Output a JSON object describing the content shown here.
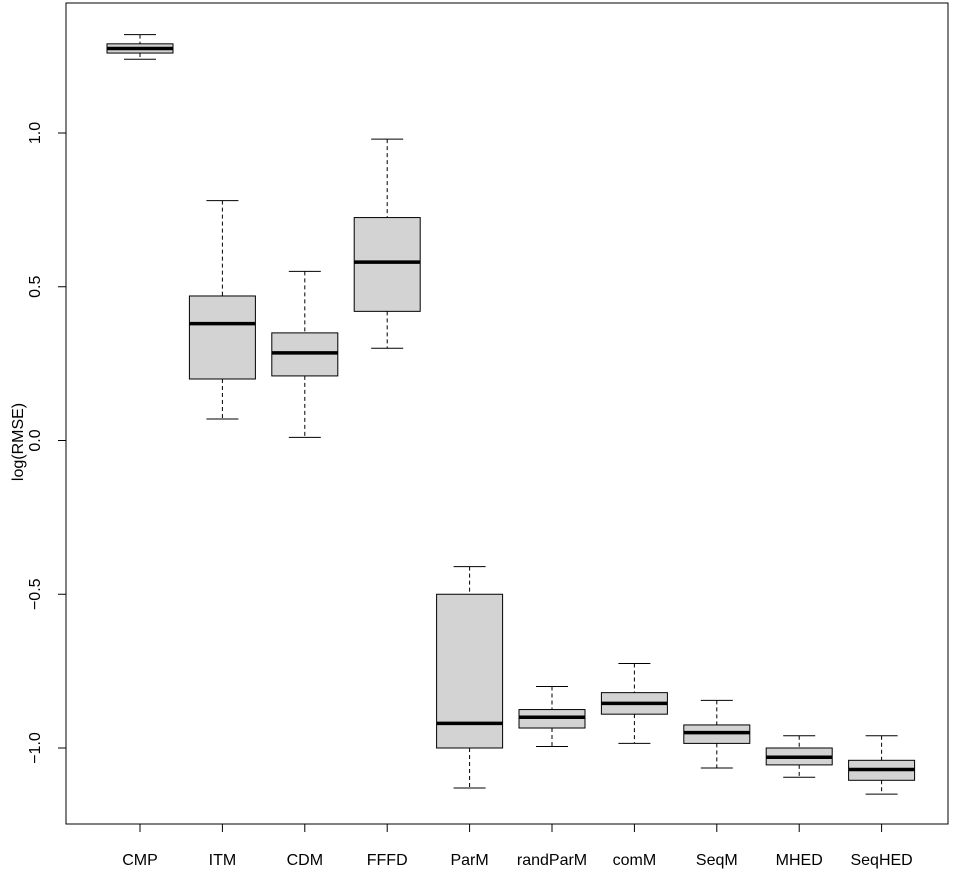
{
  "chart_data": {
    "type": "boxplot",
    "title": "",
    "xlabel": "",
    "ylabel": "log(RMSE)",
    "ylim": [
      -1.25,
      1.43
    ],
    "yticks": [
      -1.0,
      -0.5,
      0.0,
      0.5,
      1.0
    ],
    "ytick_labels": [
      "−1.0",
      "−0.5",
      "0.0",
      "0.5",
      "1.0"
    ],
    "categories": [
      "CMP",
      "ITM",
      "CDM",
      "FFFD",
      "ParM",
      "randParM",
      "comM",
      "SeqM",
      "MHED",
      "SeqHED"
    ],
    "boxes": [
      {
        "name": "CMP",
        "whisker_low": 1.24,
        "q1": 1.26,
        "median": 1.275,
        "q3": 1.29,
        "whisker_high": 1.32
      },
      {
        "name": "ITM",
        "whisker_low": 0.07,
        "q1": 0.2,
        "median": 0.38,
        "q3": 0.47,
        "whisker_high": 0.78
      },
      {
        "name": "CDM",
        "whisker_low": 0.01,
        "q1": 0.21,
        "median": 0.285,
        "q3": 0.35,
        "whisker_high": 0.55
      },
      {
        "name": "FFFD",
        "whisker_low": 0.3,
        "q1": 0.42,
        "median": 0.58,
        "q3": 0.725,
        "whisker_high": 0.98
      },
      {
        "name": "ParM",
        "whisker_low": -1.13,
        "q1": -1.0,
        "median": -0.92,
        "q3": -0.5,
        "whisker_high": -0.41
      },
      {
        "name": "randParM",
        "whisker_low": -0.995,
        "q1": -0.935,
        "median": -0.9,
        "q3": -0.875,
        "whisker_high": -0.8
      },
      {
        "name": "comM",
        "whisker_low": -0.985,
        "q1": -0.89,
        "median": -0.855,
        "q3": -0.82,
        "whisker_high": -0.725
      },
      {
        "name": "SeqM",
        "whisker_low": -1.065,
        "q1": -0.985,
        "median": -0.95,
        "q3": -0.925,
        "whisker_high": -0.845
      },
      {
        "name": "MHED",
        "whisker_low": -1.095,
        "q1": -1.055,
        "median": -1.03,
        "q3": -1.0,
        "whisker_high": -0.96
      },
      {
        "name": "SeqHED",
        "whisker_low": -1.15,
        "q1": -1.105,
        "median": -1.07,
        "q3": -1.04,
        "whisker_high": -0.96
      }
    ],
    "box_fill": "#d3d3d3",
    "line_color": "#000000",
    "grid": false
  }
}
